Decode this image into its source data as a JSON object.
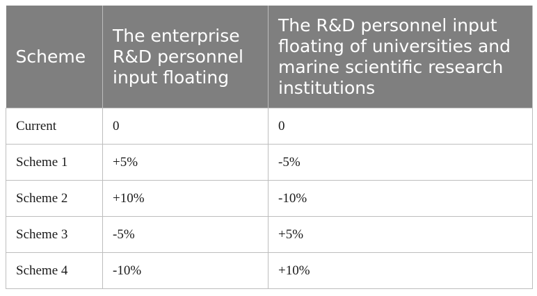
{
  "table": {
    "headers": [
      "Scheme",
      "The enterprise R&D personnel input floating",
      "The R&D personnel input floating of universities and marine scientific research institutions"
    ],
    "rows": [
      [
        "Current",
        "0",
        "0"
      ],
      [
        "Scheme 1",
        "+5%",
        "-5%"
      ],
      [
        "Scheme 2",
        "+10%",
        "-10%"
      ],
      [
        "Scheme 3",
        "-5%",
        "+5%"
      ],
      [
        "Scheme 4",
        "-10%",
        "+10%"
      ]
    ]
  },
  "colors": {
    "header_background": "#7f7f7f",
    "header_text": "#ffffff",
    "grid_lines": "#bdbdbd"
  }
}
